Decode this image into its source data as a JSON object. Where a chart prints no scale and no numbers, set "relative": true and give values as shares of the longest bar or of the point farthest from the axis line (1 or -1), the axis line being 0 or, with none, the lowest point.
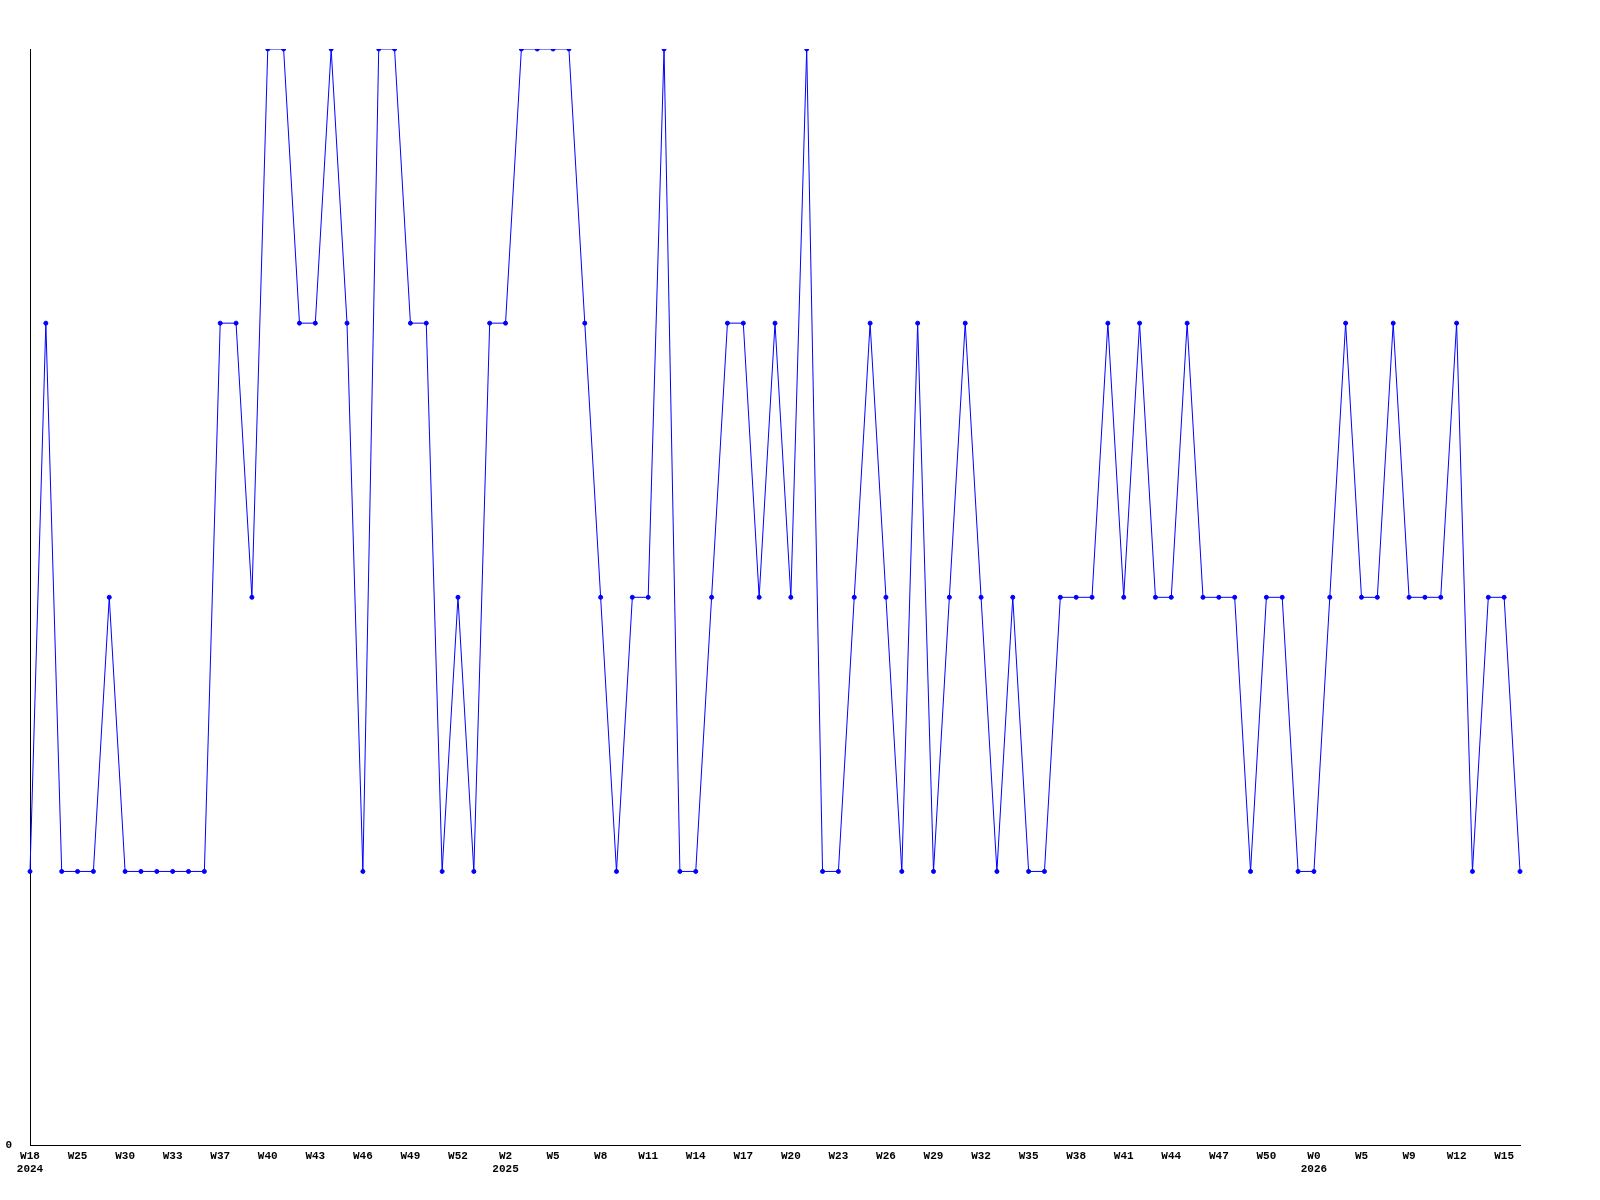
{
  "chart_data": {
    "type": "line",
    "relative": true,
    "marker": "circle",
    "grid": false,
    "legend": false,
    "annotations": [
      "0"
    ],
    "categories": [
      "W18\n2024",
      null,
      null,
      "W25",
      null,
      null,
      "W30",
      null,
      null,
      "W33",
      null,
      null,
      "W37",
      null,
      null,
      "W40",
      null,
      null,
      "W43",
      null,
      null,
      "W46",
      null,
      null,
      "W49",
      null,
      null,
      "W52",
      null,
      null,
      "W2\n2025",
      null,
      null,
      "W5",
      null,
      null,
      "W8",
      null,
      null,
      "W11",
      null,
      null,
      "W14",
      null,
      null,
      "W17",
      null,
      null,
      "W20",
      null,
      null,
      "W23",
      null,
      null,
      "W26",
      null,
      null,
      "W29",
      null,
      null,
      "W32",
      null,
      null,
      "W35",
      null,
      null,
      "W38",
      null,
      null,
      "W41",
      null,
      null,
      "W44",
      null,
      null,
      "W47",
      null,
      null,
      "W50",
      null,
      null,
      "W0\n2026",
      null,
      null,
      "W5",
      null,
      null,
      "W9",
      null,
      null,
      "W12",
      null,
      null,
      "W15",
      null
    ],
    "series": [
      {
        "color": "#0000ff",
        "values": [
          0.25,
          0.75,
          0.25,
          0.25,
          0.25,
          0.5,
          0.25,
          0.25,
          0.25,
          0.25,
          0.25,
          0.25,
          0.75,
          0.75,
          0.5,
          1,
          1,
          0.75,
          0.75,
          1,
          0.75,
          0.25,
          1,
          1,
          0.75,
          0.75,
          0.25,
          0.5,
          0.25,
          0.75,
          0.75,
          1,
          1,
          1,
          1,
          0.75,
          0.5,
          0.25,
          0.5,
          0.5,
          1,
          0.25,
          0.25,
          0.5,
          0.75,
          0.75,
          0.5,
          0.75,
          0.5,
          1,
          0.25,
          0.25,
          0.5,
          0.75,
          0.5,
          0.25,
          0.75,
          0.25,
          0.5,
          0.75,
          0.5,
          0.25,
          0.5,
          0.25,
          0.25,
          0.5,
          0.5,
          0.5,
          0.75,
          0.5,
          0.75,
          0.5,
          0.5,
          0.75,
          0.5,
          0.5,
          0.5,
          0.25,
          0.5,
          0.5,
          0.25,
          0.25,
          0.5,
          0.75,
          0.5,
          0.5,
          0.75,
          0.5,
          0.5,
          0.5,
          0.75,
          0.25,
          0.5,
          0.5,
          0.25
        ]
      }
    ]
  }
}
